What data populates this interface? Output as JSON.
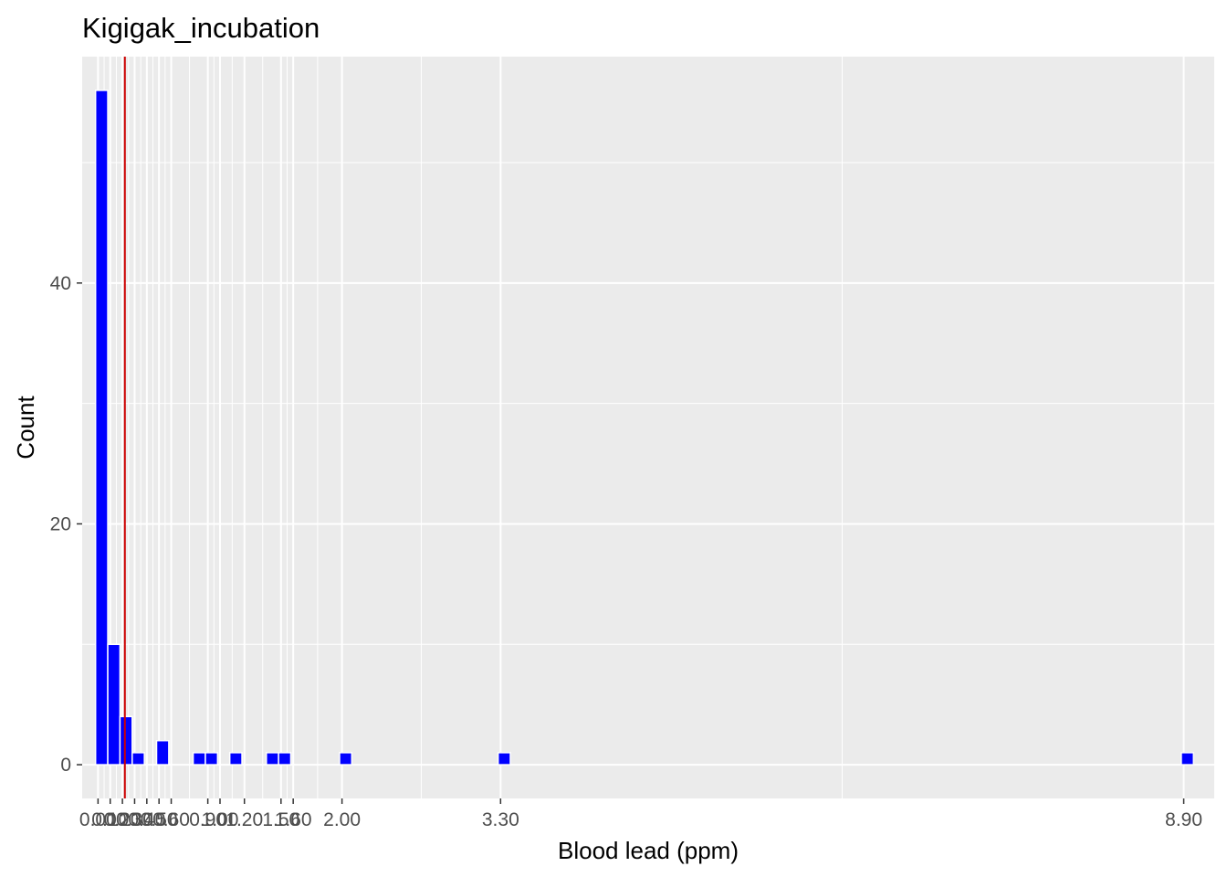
{
  "chart_data": {
    "type": "bar",
    "title": "Kigigak_incubation",
    "xlabel": "Blood lead (ppm)",
    "ylabel": "Count",
    "xlim": [
      -0.13,
      9.15
    ],
    "ylim": [
      -2.8,
      58.8
    ],
    "grid": true,
    "legend": "none",
    "colors": {
      "bar": "#0000FF",
      "bar_outline": "#FFFFFF",
      "reference_line": "#CC0000",
      "panel": "#EBEBEB",
      "grid": "#FFFFFF"
    },
    "x_ticks": [
      0.0,
      0.1,
      0.2,
      0.3,
      0.4,
      0.5,
      0.6,
      0.9,
      1.0,
      1.2,
      1.5,
      1.6,
      2.0,
      3.3,
      8.9
    ],
    "x_tick_labels": [
      "0.00",
      "0.10",
      "0.20",
      "0.30",
      "0.40",
      "0.50",
      "0.60",
      "0.90",
      "1.00",
      "1.20",
      "1.50",
      "1.60",
      "2.00",
      "3.30",
      "8.90"
    ],
    "y_ticks": [
      0,
      20,
      40
    ],
    "y_tick_labels": [
      "0",
      "20",
      "40"
    ],
    "bars": [
      {
        "x": 0.03,
        "count": 56
      },
      {
        "x": 0.13,
        "count": 10
      },
      {
        "x": 0.23,
        "count": 4
      },
      {
        "x": 0.33,
        "count": 1
      },
      {
        "x": 0.53,
        "count": 2
      },
      {
        "x": 0.83,
        "count": 1
      },
      {
        "x": 0.93,
        "count": 1
      },
      {
        "x": 1.13,
        "count": 1
      },
      {
        "x": 1.43,
        "count": 1
      },
      {
        "x": 1.53,
        "count": 1
      },
      {
        "x": 2.03,
        "count": 1
      },
      {
        "x": 3.33,
        "count": 1
      },
      {
        "x": 8.93,
        "count": 1
      }
    ],
    "reference_line_x": 0.22
  }
}
